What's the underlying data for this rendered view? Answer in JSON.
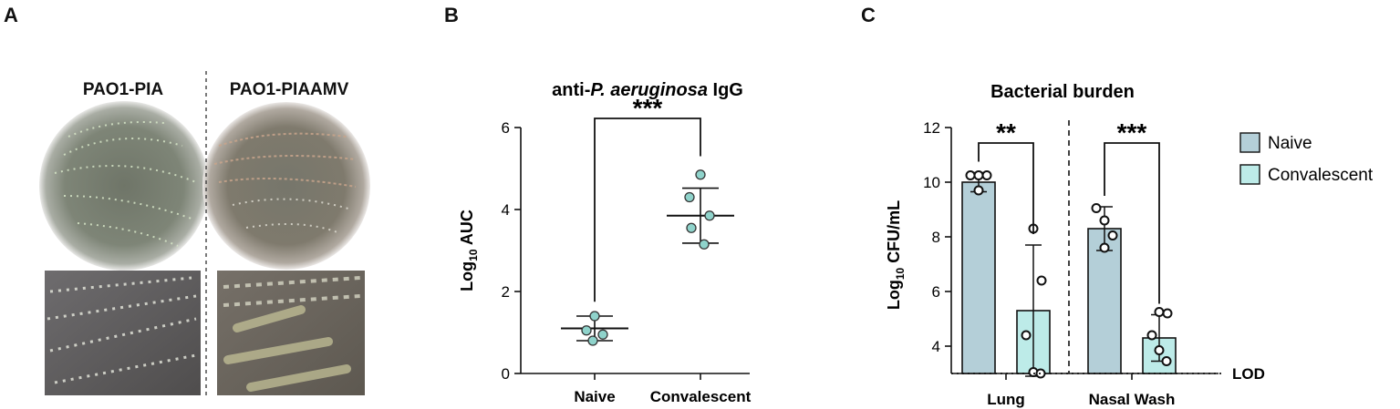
{
  "panels": {
    "a": "A",
    "b": "B",
    "c": "C"
  },
  "panel_a": {
    "left_label": "PAO1-PIA",
    "right_label": "PAO1-PIAAMV"
  },
  "chart_data": [
    {
      "type": "scatter",
      "title": {
        "pre": "anti-",
        "italic": "P. aeruginosa",
        "post": " IgG"
      },
      "ylabel": {
        "base": "Log",
        "sub": "10",
        "rest": " AUC"
      },
      "ylim": [
        0,
        6
      ],
      "yticks": [
        "0",
        "2",
        "4",
        "6"
      ],
      "categories": [
        "Naive",
        "Convalescent"
      ],
      "points": [
        [
          1.4,
          0.95,
          1.05,
          0.8
        ],
        [
          4.85,
          4.3,
          3.85,
          3.55,
          3.15
        ]
      ],
      "mean": [
        1.1,
        3.85
      ],
      "sd": [
        0.3,
        0.67
      ],
      "significance": "***",
      "marker_color": "#8fd3cb"
    },
    {
      "type": "bar",
      "title": "Bacterial burden",
      "ylabel": {
        "base": "Log",
        "sub": "10",
        "rest": " CFU/mL"
      },
      "ylim": [
        3,
        12
      ],
      "yticks": [
        "4",
        "6",
        "8",
        "10",
        "12"
      ],
      "categories": [
        "Lung",
        "Nasal Wash"
      ],
      "series": [
        {
          "name": "Naive",
          "color": "#b4cfd8",
          "values": [
            10.0,
            8.3
          ],
          "sd": [
            0.35,
            0.8
          ],
          "points": [
            [
              10.25,
              10.25,
              10.25,
              9.7
            ],
            [
              9.05,
              8.6,
              8.05,
              7.6
            ]
          ]
        },
        {
          "name": "Convalescent",
          "color": "#bdebe8",
          "values": [
            5.3,
            4.3
          ],
          "sd": [
            2.4,
            0.85
          ],
          "points": [
            [
              8.3,
              6.4,
              4.4,
              3.05,
              3.0
            ],
            [
              5.25,
              5.2,
              4.4,
              3.85,
              3.45
            ]
          ]
        }
      ],
      "significance": [
        "**",
        "***"
      ],
      "lod": {
        "value": 3.0,
        "label": "LOD"
      },
      "legend_position": "right"
    }
  ]
}
